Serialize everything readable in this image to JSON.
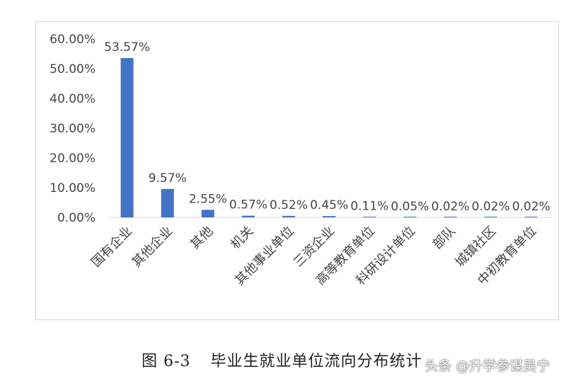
{
  "chart_data": {
    "type": "bar",
    "categories": [
      "国有企业",
      "其他企业",
      "其他",
      "机关",
      "其他事业单位",
      "三资企业",
      "高等教育单位",
      "科研设计单位",
      "部队",
      "城镇社区",
      "中初教育单位"
    ],
    "values": [
      53.57,
      9.57,
      2.55,
      0.57,
      0.52,
      0.45,
      0.11,
      0.05,
      0.02,
      0.02,
      0.02
    ],
    "data_labels": [
      "53.57%",
      "9.57%",
      "2.55%",
      "0.57%",
      "0.52%",
      "0.45%",
      "0.11%",
      "0.05%",
      "0.02%",
      "0.02%",
      "0.02%"
    ],
    "y_ticks": [
      "0.00%",
      "10.00%",
      "20.00%",
      "30.00%",
      "40.00%",
      "50.00%",
      "60.00%"
    ],
    "ylim": [
      0,
      60
    ],
    "bar_color": "#4472c4",
    "grid": false,
    "legend": "none"
  },
  "caption": {
    "number": "图 6-3",
    "title": "毕业生就业单位流向分布统计"
  },
  "watermark": "头条 @升学参谋吴宁"
}
